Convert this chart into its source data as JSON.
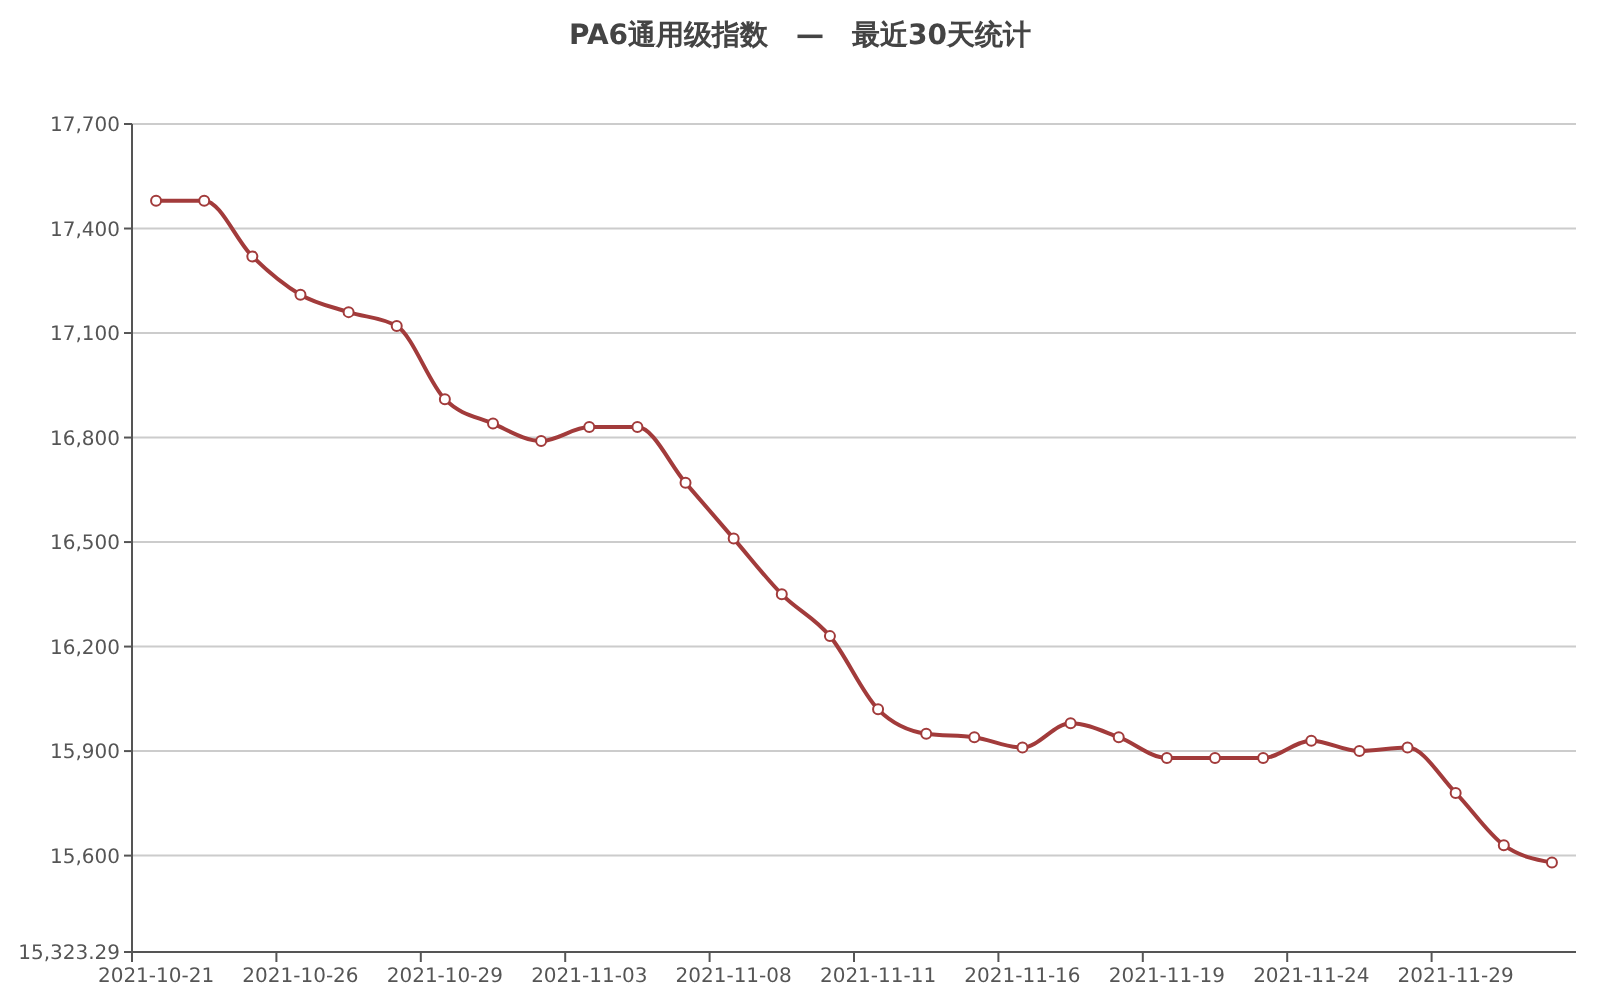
{
  "chart_data": {
    "type": "line",
    "title": "PA6通用级指数　—　最近30天统计",
    "categories": [
      "2021-10-21",
      null,
      null,
      "2021-10-26",
      null,
      null,
      "2021-10-29",
      null,
      null,
      "2021-11-03",
      null,
      null,
      "2021-11-08",
      null,
      null,
      "2021-11-11",
      null,
      null,
      "2021-11-16",
      null,
      null,
      "2021-11-19",
      null,
      null,
      "2021-11-24",
      null,
      null,
      "2021-11-29",
      null,
      null
    ],
    "series": [
      {
        "color": "#a23b3b",
        "values": [
          17480,
          17480,
          17320,
          17210,
          17160,
          17120,
          16910,
          16840,
          16790,
          16830,
          16830,
          16670,
          16510,
          16350,
          16230,
          16020,
          15950,
          15940,
          15910,
          15980,
          15940,
          15880,
          15880,
          15880,
          15930,
          15900,
          15910,
          15780,
          15630,
          15580
        ]
      }
    ],
    "ylim": [
      15323.29,
      17700
    ],
    "yticks": [
      {
        "value": 15323.29,
        "label": "15,323.29"
      },
      {
        "value": 15600,
        "label": "15,600"
      },
      {
        "value": 15900,
        "label": "15,900"
      },
      {
        "value": 16200,
        "label": "16,200"
      },
      {
        "value": 16500,
        "label": "16,500"
      },
      {
        "value": 16800,
        "label": "16,800"
      },
      {
        "value": 17100,
        "label": "17,100"
      },
      {
        "value": 17400,
        "label": "17,400"
      },
      {
        "value": 17700,
        "label": "17,700"
      }
    ],
    "grid": "y",
    "marker": "circle",
    "line_style": "solid"
  }
}
